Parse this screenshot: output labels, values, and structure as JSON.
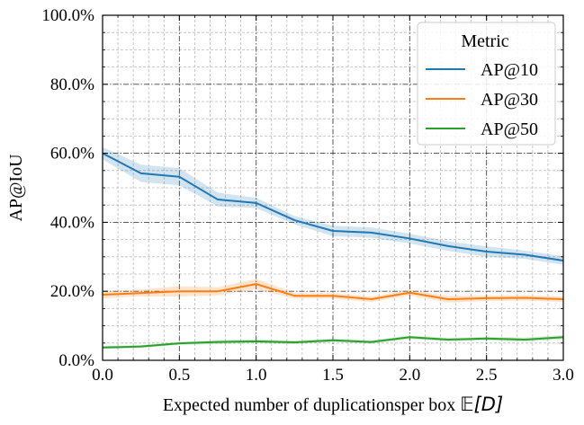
{
  "chart_data": {
    "type": "line",
    "xlabel_text": "Expected number of duplicationsper box ",
    "xlabel_math": "𝔼[D]",
    "ylabel": "AP@IoU",
    "xlim": [
      0.0,
      3.0
    ],
    "ylim": [
      0.0,
      1.0
    ],
    "x_ticks": [
      "0.0",
      "0.5",
      "1.0",
      "1.5",
      "2.0",
      "2.5",
      "3.0"
    ],
    "y_ticks": [
      "0.0%",
      "20.0%",
      "40.0%",
      "60.0%",
      "80.0%",
      "100.0%"
    ],
    "grid": true,
    "legend_title": "Metric",
    "legend_position": "top-right",
    "x": [
      0.0,
      0.25,
      0.5,
      0.75,
      1.0,
      1.25,
      1.5,
      1.75,
      2.0,
      2.25,
      2.5,
      2.75,
      3.0
    ],
    "series": [
      {
        "name": "AP@10",
        "color": "#1f77b4",
        "values": [
          0.6,
          0.542,
          0.532,
          0.466,
          0.456,
          0.406,
          0.375,
          0.37,
          0.353,
          0.331,
          0.315,
          0.306,
          0.289
        ],
        "band": [
          0.018,
          0.025,
          0.025,
          0.02,
          0.015,
          0.012,
          0.015,
          0.015,
          0.014,
          0.014,
          0.015,
          0.012,
          0.012
        ]
      },
      {
        "name": "AP@30",
        "color": "#ff7f0e",
        "values": [
          0.19,
          0.195,
          0.2,
          0.2,
          0.221,
          0.187,
          0.187,
          0.177,
          0.196,
          0.177,
          0.18,
          0.181,
          0.177
        ],
        "band": [
          0.01,
          0.01,
          0.015,
          0.012,
          0.015,
          0.008,
          0.008,
          0.008,
          0.008,
          0.01,
          0.008,
          0.008,
          0.008
        ]
      },
      {
        "name": "AP@50",
        "color": "#2ca02c",
        "values": [
          0.037,
          0.04,
          0.049,
          0.053,
          0.055,
          0.052,
          0.058,
          0.053,
          0.067,
          0.06,
          0.063,
          0.06,
          0.067
        ],
        "band": [
          0.004,
          0.004,
          0.004,
          0.006,
          0.006,
          0.005,
          0.005,
          0.005,
          0.005,
          0.005,
          0.005,
          0.006,
          0.006
        ]
      }
    ]
  }
}
